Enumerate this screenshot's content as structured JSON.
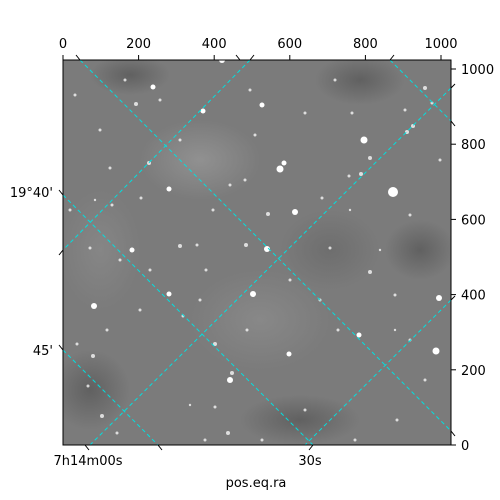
{
  "figure": {
    "xlabel": "pos.eq.ra",
    "ylabel": "",
    "pixel_axis_x": {
      "ticks": [
        "0",
        "200",
        "400",
        "600",
        "800",
        "1000"
      ],
      "values": [
        0,
        200,
        400,
        600,
        800,
        1000
      ],
      "range": [
        0,
        1024
      ]
    },
    "pixel_axis_y": {
      "ticks": [
        "0",
        "200",
        "400",
        "600",
        "800",
        "1000"
      ],
      "values": [
        0,
        200,
        400,
        600,
        800,
        1000
      ],
      "range": [
        0,
        1024
      ]
    },
    "ra_ticks": [
      "7h14m00s",
      "30s"
    ],
    "dec_ticks": [
      "19°40'",
      "45'"
    ],
    "grid_color": "#00e5e5",
    "image_background": "#7a7a7a"
  }
}
